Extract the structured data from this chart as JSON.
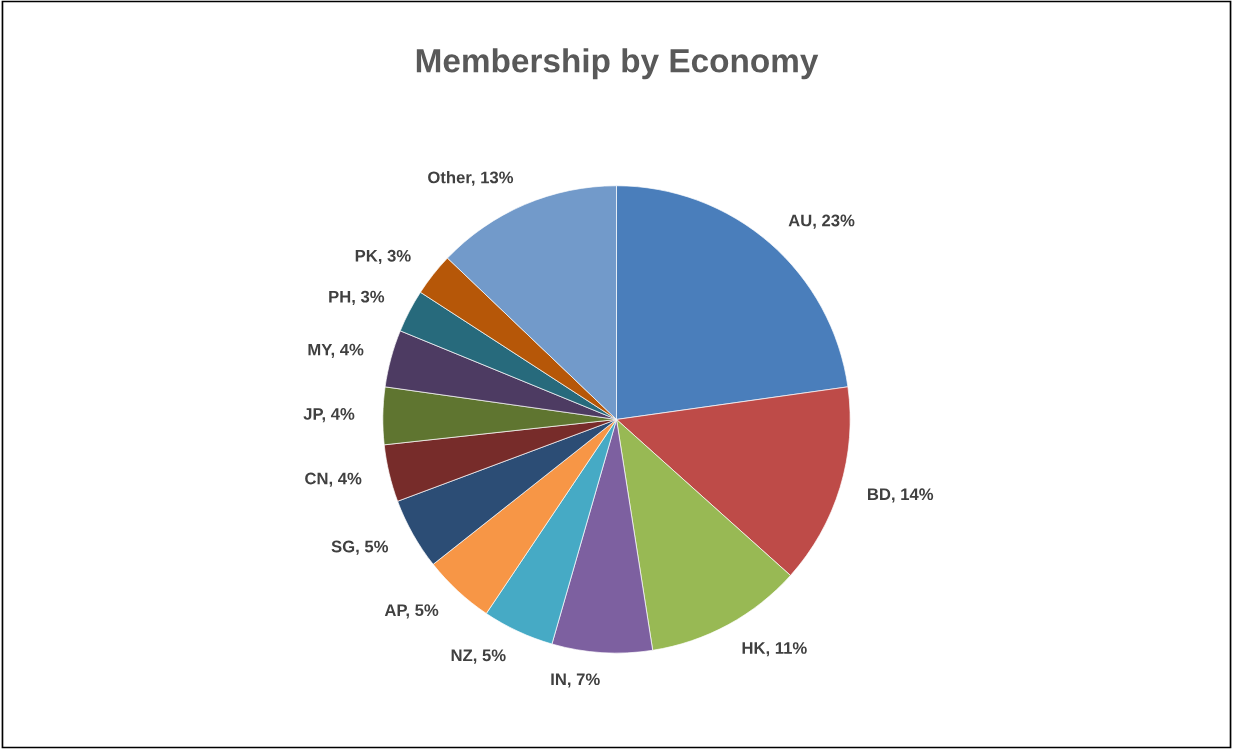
{
  "chart_data": {
    "type": "pie",
    "title": "Membership by Economy",
    "categories": [
      "AU",
      "BD",
      "HK",
      "IN",
      "NZ",
      "AP",
      "SG",
      "CN",
      "JP",
      "MY",
      "PH",
      "PK",
      "Other"
    ],
    "values": [
      23,
      14,
      11,
      7,
      5,
      5,
      5,
      4,
      4,
      4,
      3,
      3,
      13
    ],
    "value_labels": [
      "23%",
      "14%",
      "11%",
      "7%",
      "5%",
      "5%",
      "5%",
      "4%",
      "4%",
      "4%",
      "3%",
      "3%",
      "13%"
    ],
    "colors": [
      "#4a7ebb",
      "#be4b48",
      "#98b954",
      "#7d60a0",
      "#46aac5",
      "#f79646",
      "#2c4d75",
      "#772c2a",
      "#5f7530",
      "#4d3b62",
      "#276a7c",
      "#b65708",
      "#729aca"
    ],
    "legend": false
  }
}
